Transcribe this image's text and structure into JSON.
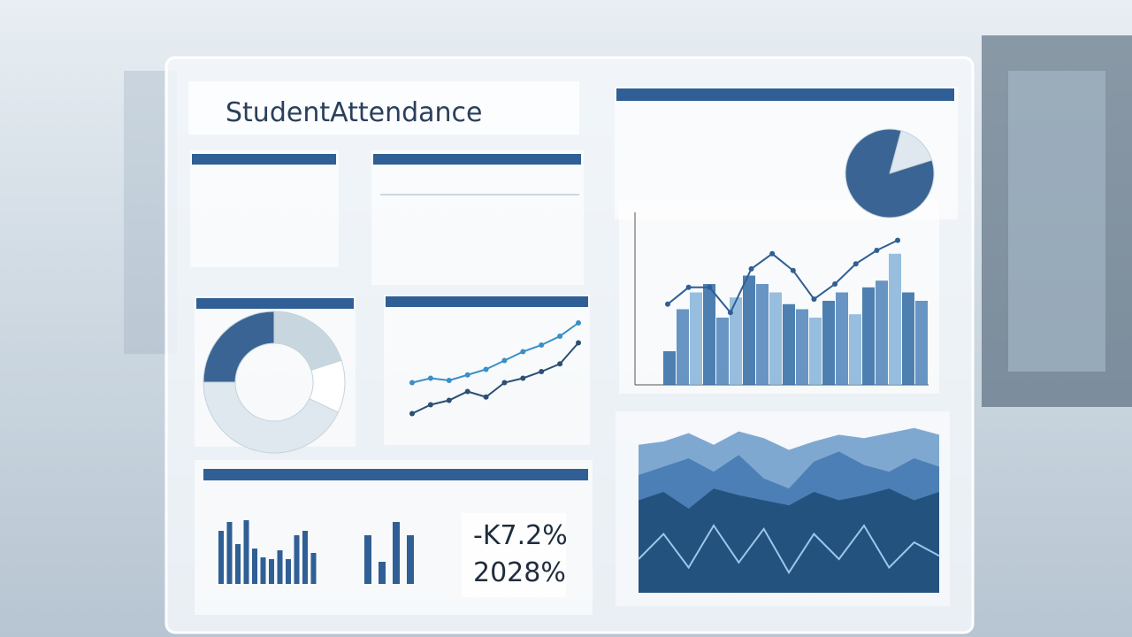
{
  "header": {
    "title": "StudentAttendance"
  },
  "kpis": [
    "-K7.2%",
    "2028%"
  ],
  "charts": {
    "top_pie": {
      "type": "pie",
      "values": [
        16,
        84
      ],
      "colors": [
        "#dfe8ee",
        "#3a6494"
      ]
    },
    "combo": {
      "type": "bar-line",
      "ylim": [
        0,
        100
      ],
      "bars": [
        20,
        45,
        55,
        60,
        40,
        52,
        65,
        60,
        55,
        48,
        45,
        40,
        50,
        55,
        42,
        58,
        62,
        78,
        55,
        50
      ],
      "line": [
        48,
        58,
        58,
        43,
        69,
        78,
        68,
        51,
        60,
        72,
        80,
        86
      ]
    },
    "donut": {
      "type": "donut",
      "values": [
        25,
        20,
        12,
        43
      ],
      "colors": [
        "#3a6494",
        "#c8d6df",
        "#ffffff",
        "#dfe8ee"
      ]
    },
    "trend": {
      "type": "line",
      "ylim": [
        0,
        100
      ],
      "series": [
        {
          "color": "#2c4f74",
          "values": [
            10,
            18,
            22,
            30,
            25,
            38,
            42,
            48,
            55,
            74
          ]
        },
        {
          "color": "#3b8fc4",
          "values": [
            38,
            42,
            40,
            45,
            50,
            58,
            66,
            72,
            80,
            92
          ]
        }
      ]
    },
    "bars": {
      "type": "bar",
      "ylim": [
        0,
        100
      ],
      "color": "#2f5f94",
      "series": [
        {
          "values": [
            60,
            70,
            45,
            72,
            40,
            30,
            28,
            38,
            28,
            55,
            60,
            35
          ]
        },
        {
          "values": [
            55,
            25,
            70,
            55
          ]
        }
      ]
    },
    "area": {
      "type": "area",
      "ylim": [
        0,
        100
      ],
      "series": [
        {
          "color": "#7fa8d0",
          "values": [
            88,
            90,
            95,
            88,
            96,
            92,
            85,
            90,
            94,
            92,
            95,
            98,
            94
          ]
        },
        {
          "color": "#4c7fb5",
          "values": [
            70,
            75,
            80,
            72,
            82,
            68,
            62,
            78,
            84,
            76,
            72,
            80,
            75
          ]
        },
        {
          "color": "#24527f",
          "values": [
            55,
            60,
            50,
            62,
            58,
            55,
            52,
            60,
            55,
            58,
            62,
            55,
            60
          ]
        },
        {
          "color": "#9cc7ea",
          "values": [
            20,
            35,
            15,
            40,
            18,
            38,
            12,
            35,
            20,
            40,
            15,
            30,
            22
          ]
        }
      ]
    }
  }
}
